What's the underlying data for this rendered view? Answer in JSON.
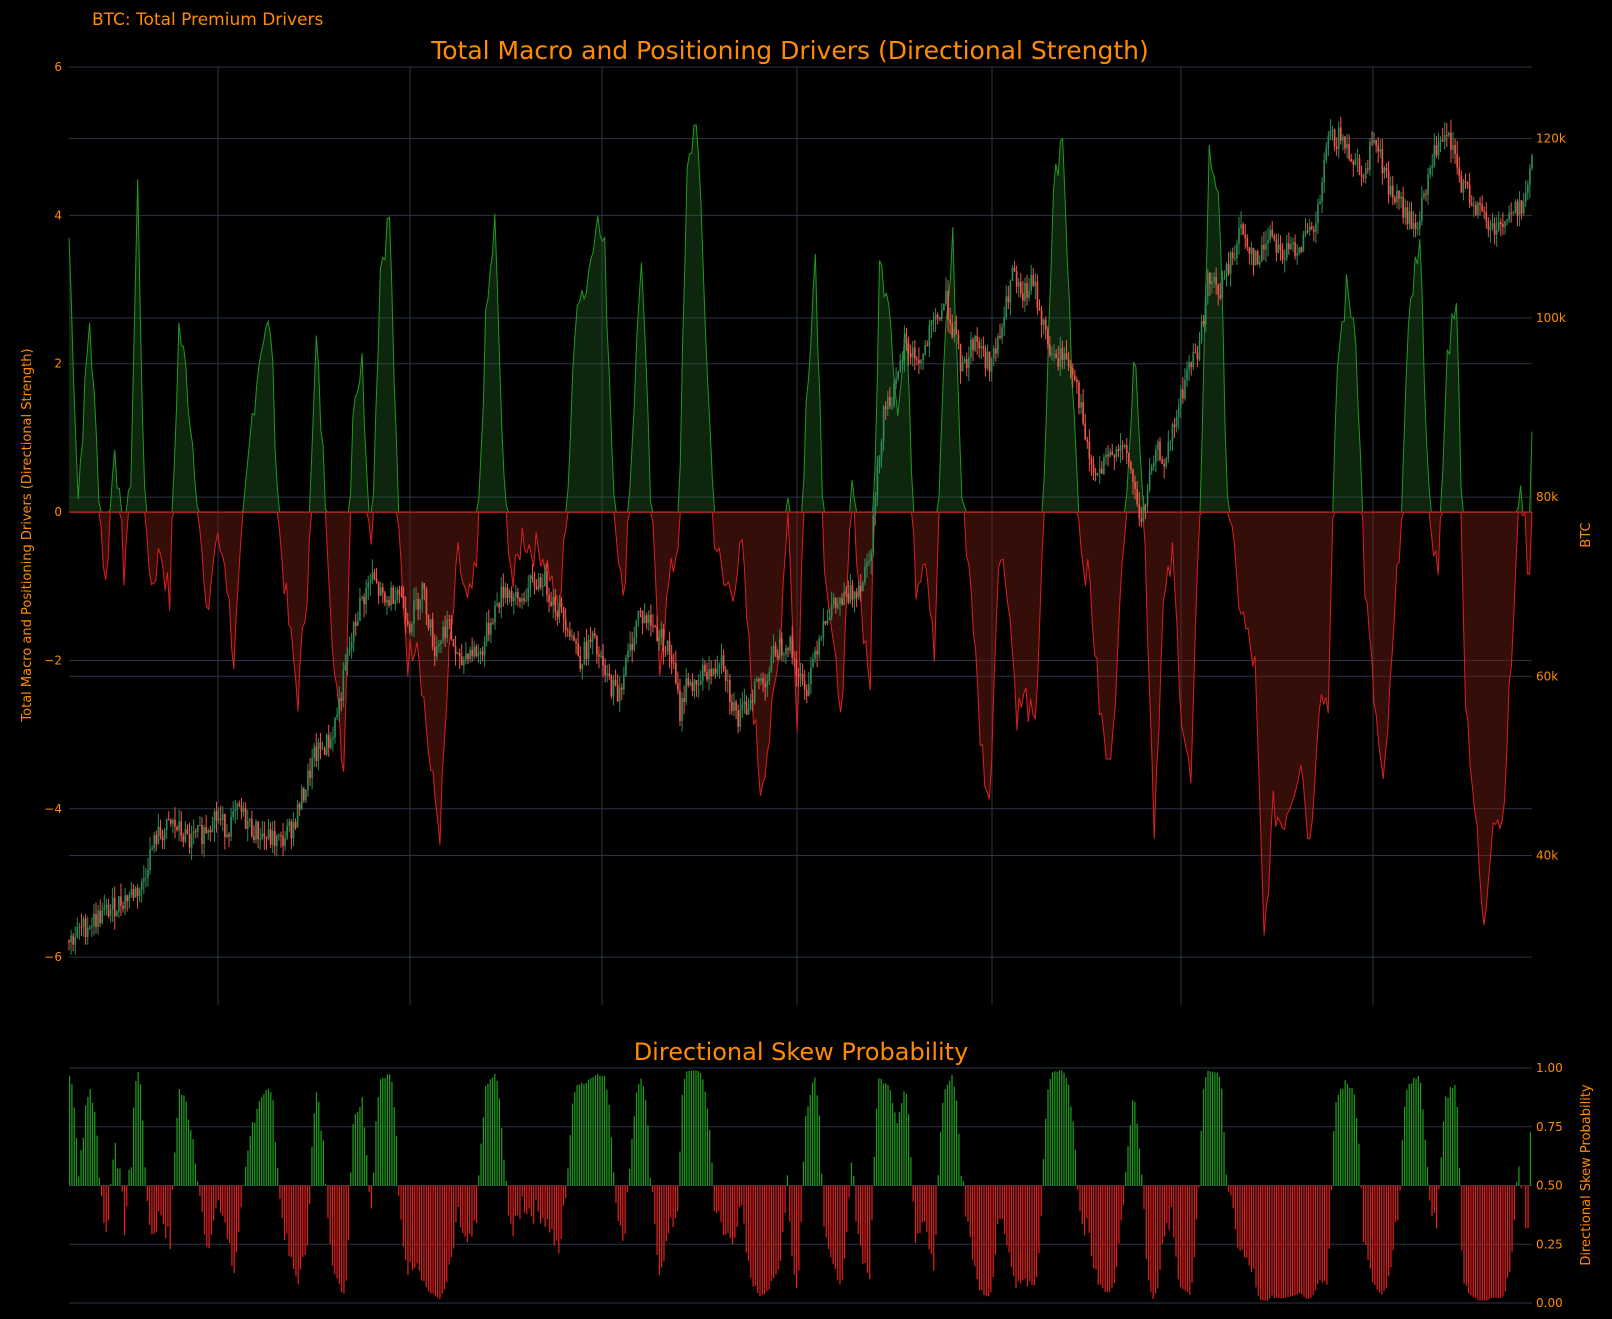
{
  "page": {
    "corner_title": "BTC: Total Premium Drivers"
  },
  "colors": {
    "accent": "#ff8c00",
    "positive": "#1f9a1f",
    "negative": "#dd1f1f",
    "candle_up": "#2e8b57",
    "candle_down": "#f0564a",
    "grid": "#2b3345"
  },
  "chart_data": [
    {
      "type": "area",
      "title": "Total Macro and Positioning Drivers (Directional Strength)",
      "ylabel": "Total Macro and Positioning Drivers (Directional Strength)",
      "y2label": "BTC",
      "ylim": [
        -6.2,
        6
      ],
      "yticks": [
        6,
        4,
        2,
        0,
        -2,
        -4,
        -6
      ],
      "yticklabels": [
        "6",
        "4",
        "2",
        "0",
        "−2",
        "−4",
        "−6"
      ],
      "y2lim": [
        27000,
        128000
      ],
      "y2ticks": [
        120000,
        100000,
        80000,
        60000,
        40000
      ],
      "y2ticklabels": [
        "120k",
        "100k",
        "80k",
        "60k",
        "40k"
      ],
      "grid": true,
      "n_points": 640,
      "series": [
        {
          "kind": "directional_strength_area",
          "anchors": [
            [
              0,
              3.7
            ],
            [
              4,
              0.2
            ],
            [
              9,
              2.6
            ],
            [
              14,
              -0.2
            ],
            [
              16,
              -1.0
            ],
            [
              20,
              1.0
            ],
            [
              24,
              -0.8
            ],
            [
              27,
              0.5
            ],
            [
              30,
              4.4
            ],
            [
              33,
              0.1
            ],
            [
              36,
              -1.0
            ],
            [
              40,
              -0.5
            ],
            [
              44,
              -1.2
            ],
            [
              48,
              2.5
            ],
            [
              51,
              1.9
            ],
            [
              56,
              0.3
            ],
            [
              60,
              -1.5
            ],
            [
              64,
              -0.4
            ],
            [
              68,
              -0.6
            ],
            [
              72,
              -2.0
            ],
            [
              76,
              -0.2
            ],
            [
              80,
              1.3
            ],
            [
              84,
              2.3
            ],
            [
              88,
              2.5
            ],
            [
              92,
              -0.3
            ],
            [
              96,
              -1.5
            ],
            [
              100,
              -2.5
            ],
            [
              104,
              -1.0
            ],
            [
              108,
              2.3
            ],
            [
              112,
              0.2
            ],
            [
              116,
              -2.2
            ],
            [
              120,
              -3.5
            ],
            [
              124,
              1.5
            ],
            [
              128,
              2.0
            ],
            [
              132,
              -0.5
            ],
            [
              136,
              3.3
            ],
            [
              140,
              4.0
            ],
            [
              144,
              -0.3
            ],
            [
              148,
              -2.0
            ],
            [
              152,
              -1.6
            ],
            [
              158,
              -3.5
            ],
            [
              162,
              -4.3
            ],
            [
              166,
              -2.0
            ],
            [
              170,
              -0.6
            ],
            [
              174,
              -1.3
            ],
            [
              178,
              -0.8
            ],
            [
              182,
              2.5
            ],
            [
              186,
              3.9
            ],
            [
              190,
              0.3
            ],
            [
              194,
              -1.0
            ],
            [
              198,
              -0.3
            ],
            [
              202,
              -0.5
            ],
            [
              206,
              -0.5
            ],
            [
              210,
              -0.8
            ],
            [
              214,
              -1.5
            ],
            [
              218,
              0.4
            ],
            [
              222,
              3.0
            ],
            [
              226,
              3.0
            ],
            [
              230,
              4.0
            ],
            [
              234,
              3.5
            ],
            [
              238,
              0.3
            ],
            [
              242,
              -1.3
            ],
            [
              246,
              1.0
            ],
            [
              250,
              3.5
            ],
            [
              254,
              0.2
            ],
            [
              258,
              -2.0
            ],
            [
              262,
              -1.0
            ],
            [
              266,
              -0.4
            ],
            [
              270,
              4.5
            ],
            [
              274,
              5.4
            ],
            [
              278,
              2.5
            ],
            [
              282,
              -0.3
            ],
            [
              286,
              -1.0
            ],
            [
              290,
              -1.0
            ],
            [
              294,
              -0.5
            ],
            [
              298,
              -2.3
            ],
            [
              302,
              -3.7
            ],
            [
              306,
              -3.0
            ],
            [
              310,
              -2.0
            ],
            [
              314,
              0.2
            ],
            [
              318,
              -3.0
            ],
            [
              322,
              1.5
            ],
            [
              326,
              3.5
            ],
            [
              330,
              -0.6
            ],
            [
              334,
              -2.0
            ],
            [
              338,
              -2.6
            ],
            [
              342,
              0.4
            ],
            [
              346,
              -1.3
            ],
            [
              350,
              -2.3
            ],
            [
              354,
              3.3
            ],
            [
              358,
              3.0
            ],
            [
              362,
              1.3
            ],
            [
              366,
              2.5
            ],
            [
              370,
              -1.0
            ],
            [
              374,
              -0.5
            ],
            [
              378,
              -2.0
            ],
            [
              382,
              2.0
            ],
            [
              386,
              3.7
            ],
            [
              390,
              0.2
            ],
            [
              394,
              -1.0
            ],
            [
              398,
              -3.0
            ],
            [
              402,
              -4.0
            ],
            [
              406,
              -0.5
            ],
            [
              410,
              -1.0
            ],
            [
              414,
              -2.7
            ],
            [
              418,
              -2.5
            ],
            [
              422,
              -3.0
            ],
            [
              426,
              0.3
            ],
            [
              430,
              4.4
            ],
            [
              434,
              5.0
            ],
            [
              438,
              2.0
            ],
            [
              442,
              -0.5
            ],
            [
              446,
              -1.0
            ],
            [
              450,
              -2.6
            ],
            [
              454,
              -3.5
            ],
            [
              458,
              -2.0
            ],
            [
              462,
              0.5
            ],
            [
              466,
              2.2
            ],
            [
              470,
              -0.5
            ],
            [
              474,
              -4.2
            ],
            [
              478,
              -1.3
            ],
            [
              482,
              -0.6
            ],
            [
              486,
              -2.7
            ],
            [
              490,
              -3.7
            ],
            [
              494,
              0.1
            ],
            [
              498,
              4.8
            ],
            [
              502,
              4.4
            ],
            [
              506,
              0.3
            ],
            [
              510,
              -1.0
            ],
            [
              514,
              -1.6
            ],
            [
              518,
              -2.1
            ],
            [
              522,
              -5.8
            ],
            [
              526,
              -4.0
            ],
            [
              530,
              -4.2
            ],
            [
              534,
              -3.8
            ],
            [
              538,
              -3.3
            ],
            [
              542,
              -4.5
            ],
            [
              546,
              -2.5
            ],
            [
              550,
              -2.5
            ],
            [
              554,
              2.0
            ],
            [
              558,
              3.0
            ],
            [
              562,
              2.5
            ],
            [
              566,
              -1.0
            ],
            [
              570,
              -2.5
            ],
            [
              574,
              -3.8
            ],
            [
              578,
              -2.0
            ],
            [
              582,
              0.1
            ],
            [
              586,
              3.0
            ],
            [
              590,
              3.6
            ],
            [
              594,
              0.2
            ],
            [
              598,
              -1.0
            ],
            [
              602,
              2.1
            ],
            [
              606,
              3.0
            ],
            [
              610,
              -2.5
            ],
            [
              614,
              -4.0
            ],
            [
              618,
              -5.7
            ],
            [
              622,
              -4.0
            ],
            [
              626,
              -4.2
            ],
            [
              630,
              -2.0
            ],
            [
              634,
              0.5
            ],
            [
              638,
              -1.0
            ],
            [
              639,
              1.3
            ]
          ]
        }
      ],
      "btc_anchors": [
        [
          0,
          30500
        ],
        [
          10,
          32500
        ],
        [
          20,
          34000
        ],
        [
          30,
          35800
        ],
        [
          35,
          36500
        ],
        [
          38,
          39500
        ],
        [
          42,
          42000
        ],
        [
          50,
          43500
        ],
        [
          58,
          41500
        ],
        [
          64,
          42500
        ],
        [
          70,
          44500
        ],
        [
          76,
          43000
        ],
        [
          82,
          45000
        ],
        [
          88,
          43000
        ],
        [
          95,
          42000
        ],
        [
          102,
          41500
        ],
        [
          108,
          43500
        ],
        [
          113,
          47000
        ],
        [
          118,
          51000
        ],
        [
          126,
          53000
        ],
        [
          130,
          57000
        ],
        [
          134,
          62000
        ],
        [
          140,
          68000
        ],
        [
          146,
          71000
        ],
        [
          152,
          68000
        ],
        [
          158,
          70000
        ],
        [
          164,
          66000
        ],
        [
          170,
          70000
        ],
        [
          176,
          63000
        ],
        [
          182,
          66000
        ],
        [
          188,
          61000
        ],
        [
          192,
          63000
        ],
        [
          198,
          62500
        ],
        [
          204,
          67000
        ],
        [
          210,
          70000
        ],
        [
          216,
          68000
        ],
        [
          222,
          70000
        ],
        [
          228,
          71000
        ],
        [
          234,
          68000
        ],
        [
          240,
          66000
        ],
        [
          246,
          62000
        ],
        [
          252,
          64000
        ],
        [
          258,
          60000
        ],
        [
          264,
          58000
        ],
        [
          270,
          63000
        ],
        [
          274,
          67000
        ],
        [
          280,
          66000
        ],
        [
          286,
          64000
        ],
        [
          290,
          62000
        ],
        [
          294,
          56000
        ],
        [
          298,
          60000
        ],
        [
          302,
          58000
        ],
        [
          306,
          61000
        ],
        [
          310,
          60000
        ],
        [
          314,
          63000
        ],
        [
          318,
          58000
        ],
        [
          322,
          55000
        ],
        [
          326,
          56500
        ],
        [
          330,
          59000
        ],
        [
          336,
          60000
        ],
        [
          340,
          63000
        ],
        [
          346,
          64000
        ],
        [
          350,
          61000
        ],
        [
          354,
          58000
        ],
        [
          358,
          62000
        ],
        [
          364,
          67000
        ],
        [
          370,
          68000
        ],
        [
          376,
          69000
        ],
        [
          382,
          71000
        ],
        [
          386,
          75000
        ],
        [
          392,
          90000
        ],
        [
          398,
          92000
        ],
        [
          402,
          97000
        ],
        [
          406,
          96000
        ],
        [
          410,
          95000
        ],
        [
          414,
          98000
        ],
        [
          418,
          100000
        ],
        [
          422,
          102000
        ],
        [
          426,
          98000
        ],
        [
          430,
          94000
        ],
        [
          436,
          98000
        ],
        [
          442,
          95000
        ],
        [
          446,
          96000
        ],
        [
          450,
          100000
        ],
        [
          454,
          105000
        ],
        [
          458,
          102000
        ],
        [
          464,
          104000
        ],
        [
          470,
          98000
        ],
        [
          474,
          95000
        ],
        [
          478,
          96000
        ],
        [
          484,
          94000
        ],
        [
          490,
          85000
        ],
        [
          494,
          82000
        ],
        [
          500,
          84000
        ],
        [
          504,
          86000
        ],
        [
          510,
          84000
        ],
        [
          516,
          77000
        ],
        [
          520,
          82000
        ],
        [
          524,
          85000
        ],
        [
          528,
          84000
        ],
        [
          534,
          90000
        ],
        [
          538,
          94000
        ],
        [
          544,
          97000
        ],
        [
          548,
          104000
        ],
        [
          554,
          103000
        ],
        [
          560,
          107000
        ],
        [
          564,
          110000
        ],
        [
          568,
          108000
        ],
        [
          572,
          106000
        ],
        [
          578,
          110000
        ],
        [
          584,
          107000
        ],
        [
          590,
          108000
        ],
        [
          596,
          109000
        ],
        [
          600,
          110000
        ],
        [
          606,
          120000
        ],
        [
          612,
          120000
        ],
        [
          618,
          118000
        ],
        [
          624,
          116000
        ],
        [
          628,
          121000
        ],
        [
          632,
          117000
        ],
        [
          636,
          114000
        ],
        [
          640,
          113000
        ],
        [
          644,
          111000
        ],
        [
          648,
          110000
        ],
        [
          652,
          113000
        ],
        [
          656,
          118000
        ],
        [
          660,
          119000
        ],
        [
          664,
          120000
        ],
        [
          670,
          115000
        ],
        [
          676,
          113000
        ],
        [
          684,
          110000
        ],
        [
          692,
          111000
        ],
        [
          700,
          113000
        ],
        [
          704,
          117000
        ]
      ]
    },
    {
      "type": "bar",
      "title": "Directional Skew Probability",
      "ylabel": "Directional Skew Probability",
      "ylim": [
        0,
        1
      ],
      "yticks": [
        1.0,
        0.75,
        0.5,
        0.25,
        0.0
      ],
      "yticklabels": [
        "1.00",
        "0.75",
        "0.50",
        "0.25",
        "0.00"
      ],
      "baseline": 0.5,
      "grid": true,
      "note_values": "derived from the directional strength series (one bar per point)"
    }
  ]
}
